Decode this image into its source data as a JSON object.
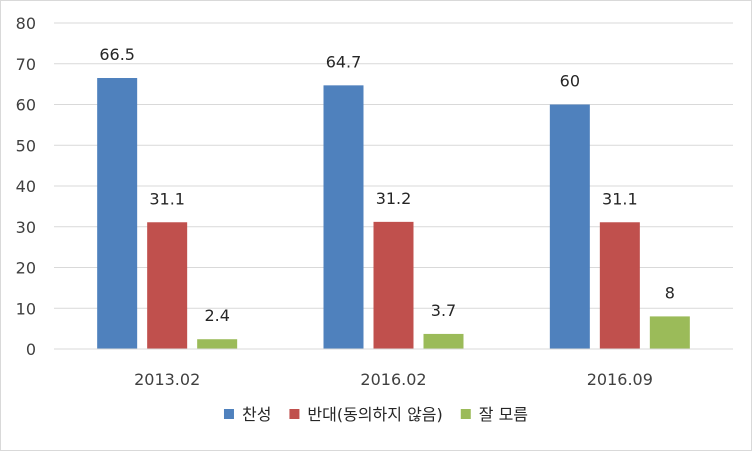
{
  "chart_data": {
    "type": "bar",
    "categories": [
      "2013.02",
      "2016.02",
      "2016.09"
    ],
    "series": [
      {
        "name": "찬성",
        "values": [
          66.5,
          64.7,
          60
        ],
        "labels": [
          "66.5",
          "64.7",
          "60"
        ],
        "color": "#4f81bd"
      },
      {
        "name": "반대(동의하지 않음)",
        "values": [
          31.1,
          31.2,
          31.1
        ],
        "labels": [
          "31.1",
          "31.2",
          "31.1"
        ],
        "color": "#c0504d"
      },
      {
        "name": "잘 모름",
        "values": [
          2.4,
          3.7,
          8
        ],
        "labels": [
          "2.4",
          "3.7",
          "8"
        ],
        "color": "#9bbb59"
      }
    ],
    "ylim": [
      0,
      80
    ],
    "yticks": [
      0,
      10,
      20,
      30,
      40,
      50,
      60,
      70,
      80
    ],
    "grid": true,
    "legend_position": "bottom",
    "title": "",
    "xlabel": "",
    "ylabel": ""
  }
}
